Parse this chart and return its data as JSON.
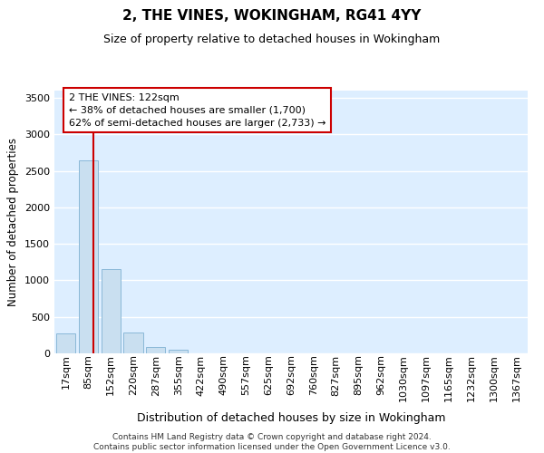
{
  "title": "2, THE VINES, WOKINGHAM, RG41 4YY",
  "subtitle": "Size of property relative to detached houses in Wokingham",
  "xlabel": "Distribution of detached houses by size in Wokingham",
  "ylabel": "Number of detached properties",
  "footer_line1": "Contains HM Land Registry data © Crown copyright and database right 2024.",
  "footer_line2": "Contains public sector information licensed under the Open Government Licence v3.0.",
  "bin_labels": [
    "17sqm",
    "85sqm",
    "152sqm",
    "220sqm",
    "287sqm",
    "355sqm",
    "422sqm",
    "490sqm",
    "557sqm",
    "625sqm",
    "692sqm",
    "760sqm",
    "827sqm",
    "895sqm",
    "962sqm",
    "1030sqm",
    "1097sqm",
    "1165sqm",
    "1232sqm",
    "1300sqm",
    "1367sqm"
  ],
  "bar_values": [
    270,
    2640,
    1150,
    280,
    85,
    50,
    0,
    0,
    0,
    0,
    0,
    0,
    0,
    0,
    0,
    0,
    0,
    0,
    0,
    0,
    0
  ],
  "bar_color": "#c9dff0",
  "bar_edge_color": "#8ab8d8",
  "ylim": [
    0,
    3600
  ],
  "yticks": [
    0,
    500,
    1000,
    1500,
    2000,
    2500,
    3000,
    3500
  ],
  "red_line_x": 1.22,
  "annotation_line1": "2 THE VINES: 122sqm",
  "annotation_line2": "← 38% of detached houses are smaller (1,700)",
  "annotation_line3": "62% of semi-detached houses are larger (2,733) →",
  "annotation_box_color": "#ffffff",
  "annotation_box_edge": "#cc0000",
  "background_color": "#ddeeff",
  "grid_color": "#ffffff",
  "title_fontsize": 11,
  "subtitle_fontsize": 9,
  "ylabel_fontsize": 8.5,
  "xlabel_fontsize": 9,
  "tick_fontsize": 8,
  "footer_fontsize": 6.5
}
